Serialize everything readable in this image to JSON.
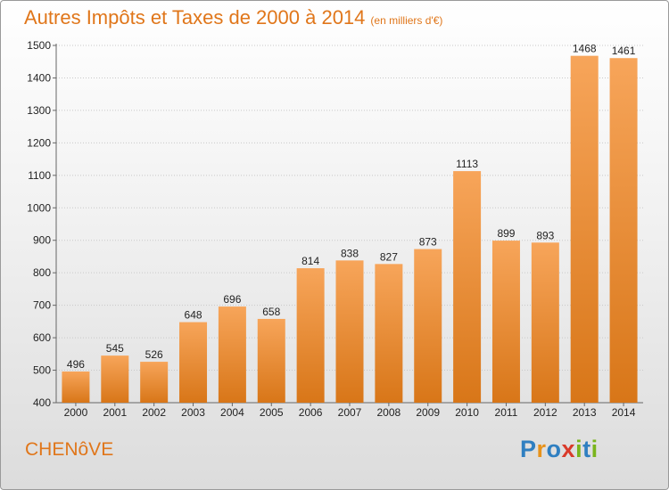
{
  "header": {
    "title": "Autres Impôts et Taxes de 2000 à 2014",
    "subtitle": "(en milliers d'€)"
  },
  "footer": {
    "city": "CHENôVE",
    "logo_letters": [
      {
        "ch": "P",
        "color": "#2f7fc1"
      },
      {
        "ch": "r",
        "color": "#e8921a"
      },
      {
        "ch": "o",
        "color": "#2f7fc1"
      },
      {
        "ch": "x",
        "color": "#d93a2a"
      },
      {
        "ch": "i",
        "color": "#7ab51d"
      },
      {
        "ch": "t",
        "color": "#2f7fc1"
      },
      {
        "ch": "i",
        "color": "#7ab51d"
      }
    ]
  },
  "colors": {
    "accent": "#e0761a",
    "bar_top": "#f7a55a",
    "bar_bottom": "#d87618"
  },
  "chart_data": {
    "type": "bar",
    "categories": [
      "2000",
      "2001",
      "2002",
      "2003",
      "2004",
      "2005",
      "2006",
      "2007",
      "2008",
      "2009",
      "2010",
      "2011",
      "2012",
      "2013",
      "2014"
    ],
    "values": [
      496,
      545,
      526,
      648,
      696,
      658,
      814,
      838,
      827,
      873,
      1113,
      899,
      893,
      1468,
      1461
    ],
    "value_labels": [
      "496",
      "545",
      "526",
      "648",
      "696",
      "658",
      "814",
      "838",
      "827",
      "873",
      "1113",
      "899",
      "893",
      "1468",
      "1461"
    ],
    "ylim": [
      400,
      1500
    ],
    "yticks": [
      400,
      500,
      600,
      700,
      800,
      900,
      1000,
      1100,
      1200,
      1300,
      1400,
      1500
    ],
    "ytick_labels": [
      "400",
      "500",
      "600",
      "700",
      "800",
      "900",
      "1000",
      "1100",
      "1200",
      "1300",
      "1400",
      "1500"
    ],
    "grid": true,
    "xlabel": "",
    "ylabel": ""
  }
}
